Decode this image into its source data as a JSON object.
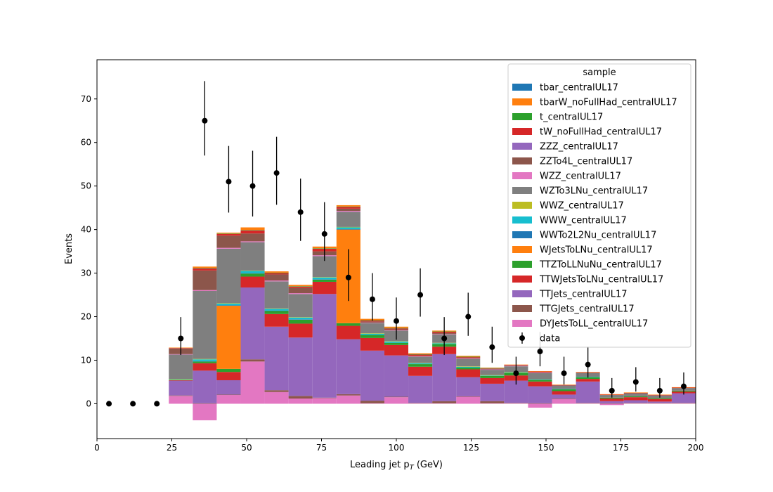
{
  "chart_data": {
    "type": "bar",
    "xlabel": "Leading jet  p",
    "xlabel_sub": "T",
    "xlabel_unit": " (GeV)",
    "ylabel": "Events",
    "xlim": [
      0,
      200
    ],
    "ylim": [
      -8,
      79
    ],
    "xticks": [
      "0",
      "25",
      "50",
      "75",
      "100",
      "125",
      "150",
      "175",
      "200"
    ],
    "xtick_values": [
      0,
      25,
      50,
      75,
      100,
      125,
      150,
      175,
      200
    ],
    "yticks": [
      "0",
      "10",
      "20",
      "30",
      "40",
      "50",
      "60",
      "70"
    ],
    "ytick_values": [
      0,
      10,
      20,
      30,
      40,
      50,
      60,
      70
    ],
    "legend_title": "sample",
    "legend_position": "top-right",
    "grid": false,
    "bin_edges": [
      24,
      32,
      40,
      48,
      56,
      64,
      72,
      80,
      88,
      96,
      104,
      112,
      120,
      128,
      136,
      144,
      152,
      160,
      168,
      176,
      184,
      192,
      200
    ],
    "series": [
      {
        "name": "DYJetsToLL_centralUL17",
        "color": "#e377c2",
        "values": [
          1.8,
          -3.8,
          2.0,
          9.7,
          2.7,
          1.2,
          1.3,
          1.9,
          0.1,
          1.5,
          0.1,
          0.1,
          1.6,
          0.1,
          0.1,
          -0.9,
          1.1,
          0.1,
          -0.3,
          0.1,
          0.1,
          0.1
        ]
      },
      {
        "name": "TTGJets_centralUL17",
        "color": "#8c564b",
        "values": [
          0.1,
          0.1,
          0.1,
          0.5,
          0.4,
          0.6,
          0.1,
          0.3,
          0.6,
          0.1,
          0.1,
          0.5,
          0.1,
          0.5,
          0.1,
          0.1,
          0.1,
          0.1,
          0.1,
          0.1,
          0.1,
          0.1
        ]
      },
      {
        "name": "TTJets_centralUL17",
        "color": "#9467bd",
        "values": [
          3.4,
          7.5,
          3.3,
          16.5,
          14.6,
          13.4,
          23.8,
          12.6,
          11.5,
          9.5,
          6.2,
          10.8,
          4.4,
          4.0,
          5.1,
          3.9,
          0.9,
          4.9,
          0.5,
          0.6,
          0.3,
          2.2
        ]
      },
      {
        "name": "TTWJetsToLNu_centralUL17",
        "color": "#d62728",
        "values": [
          0.1,
          1.7,
          1.9,
          2.5,
          2.9,
          3.2,
          2.8,
          3.1,
          2.9,
          2.4,
          2.1,
          1.7,
          1.8,
          1.3,
          1.2,
          1.1,
          0.8,
          0.6,
          0.6,
          0.7,
          0.6,
          0.4
        ]
      },
      {
        "name": "TTZToLLNuNu_centralUL17",
        "color": "#2ca02c",
        "values": [
          0.1,
          0.4,
          0.7,
          0.7,
          0.7,
          0.9,
          0.5,
          0.6,
          0.7,
          0.5,
          0.6,
          0.6,
          0.4,
          0.5,
          0.6,
          0.4,
          0.4,
          0.4,
          0.2,
          0.2,
          0.2,
          0.2
        ]
      },
      {
        "name": "WJetsToLNu_centralUL17",
        "color": "#ff7f0e",
        "values": [
          0.0,
          0.0,
          14.5,
          0.0,
          0.0,
          0.0,
          0.0,
          21.5,
          0.0,
          0.0,
          0.0,
          0.0,
          0.0,
          0.0,
          0.0,
          0.0,
          0.0,
          0.0,
          0.0,
          0.0,
          0.0,
          0.0
        ]
      },
      {
        "name": "WWTo2L2Nu_centralUL17",
        "color": "#1f77b4",
        "values": [
          0.0,
          0.1,
          0.1,
          0.1,
          0.1,
          0.1,
          0.1,
          0.1,
          0.0,
          0.0,
          0.0,
          0.0,
          0.0,
          0.0,
          0.0,
          0.0,
          0.0,
          0.0,
          0.0,
          0.0,
          0.0,
          0.0
        ]
      },
      {
        "name": "WWW_centralUL17",
        "color": "#17becf",
        "values": [
          0.1,
          0.4,
          0.4,
          0.5,
          0.4,
          0.4,
          0.4,
          0.4,
          0.3,
          0.3,
          0.2,
          0.2,
          0.2,
          0.1,
          0.1,
          0.1,
          0.1,
          0.1,
          0.0,
          0.0,
          0.0,
          0.0
        ]
      },
      {
        "name": "WWZ_centralUL17",
        "color": "#bcbd22",
        "values": [
          0.1,
          0.1,
          0.1,
          0.1,
          0.1,
          0.1,
          0.1,
          0.1,
          0.1,
          0.1,
          0.1,
          0.1,
          0.1,
          0.1,
          0.1,
          0.0,
          0.0,
          0.0,
          0.0,
          0.0,
          0.0,
          0.0
        ]
      },
      {
        "name": "WZTo3LNu_centralUL17",
        "color": "#7f7f7f",
        "values": [
          5.6,
          15.6,
          12.5,
          6.5,
          6.2,
          5.3,
          4.8,
          3.5,
          2.3,
          2.4,
          1.4,
          1.9,
          1.7,
          1.2,
          1.3,
          1.5,
          0.8,
          0.9,
          0.6,
          0.7,
          0.6,
          0.6
        ]
      },
      {
        "name": "WZZ_centralUL17",
        "color": "#e377c2",
        "values": [
          0.1,
          0.2,
          0.2,
          0.2,
          0.2,
          0.2,
          0.2,
          0.2,
          0.1,
          0.1,
          0.1,
          0.1,
          0.1,
          0.1,
          0.1,
          0.1,
          0.0,
          0.0,
          0.0,
          0.0,
          0.0,
          0.0
        ]
      },
      {
        "name": "ZZTo4L_centralUL17",
        "color": "#8c564b",
        "values": [
          1.3,
          4.5,
          2.8,
          1.8,
          1.4,
          1.2,
          0.9,
          0.5,
          0.3,
          0.2,
          0.1,
          0.2,
          0.1,
          0.1,
          0.1,
          0.0,
          0.0,
          0.0,
          0.0,
          0.0,
          0.0,
          0.0
        ]
      },
      {
        "name": "ZZZ_centralUL17",
        "color": "#9467bd",
        "values": [
          0.0,
          0.0,
          0.0,
          0.0,
          0.0,
          0.0,
          0.0,
          0.0,
          0.0,
          0.0,
          0.0,
          0.0,
          0.0,
          0.0,
          0.0,
          0.0,
          0.0,
          0.0,
          0.0,
          0.0,
          0.0,
          0.0
        ]
      },
      {
        "name": "tW_noFullHad_centralUL17",
        "color": "#d62728",
        "values": [
          0.1,
          0.5,
          0.4,
          0.7,
          0.3,
          0.3,
          0.6,
          0.4,
          0.2,
          0.2,
          0.3,
          0.3,
          0.2,
          0.1,
          0.1,
          0.2,
          0.1,
          0.1,
          0.1,
          0.1,
          0.1,
          0.1
        ]
      },
      {
        "name": "t_centralUL17",
        "color": "#2ca02c",
        "values": [
          0.0,
          0.1,
          0.1,
          0.1,
          0.1,
          0.1,
          0.1,
          0.1,
          0.1,
          0.1,
          0.1,
          0.1,
          0.1,
          0.1,
          0.0,
          0.0,
          0.0,
          0.0,
          0.0,
          0.0,
          0.0,
          0.0
        ]
      },
      {
        "name": "tbarW_noFullHad_centralUL17",
        "color": "#ff7f0e",
        "values": [
          0.1,
          0.3,
          0.2,
          0.6,
          0.3,
          0.3,
          0.4,
          0.3,
          0.3,
          0.3,
          0.2,
          0.2,
          0.2,
          0.1,
          0.1,
          0.1,
          0.1,
          0.1,
          0.1,
          0.1,
          0.1,
          0.1
        ]
      },
      {
        "name": "tbar_centralUL17",
        "color": "#1f77b4",
        "values": [
          0.0,
          0.0,
          0.0,
          0.0,
          0.0,
          0.0,
          0.0,
          0.0,
          0.0,
          0.0,
          0.0,
          0.0,
          0.0,
          0.0,
          0.0,
          0.0,
          0.0,
          0.0,
          0.0,
          0.0,
          0.0,
          0.0
        ]
      }
    ],
    "data": {
      "name": "data",
      "x": [
        4,
        12,
        20,
        28,
        36,
        44,
        52,
        60,
        68,
        76,
        84,
        92,
        100,
        108,
        116,
        124,
        132,
        140,
        148,
        156,
        164,
        172,
        180,
        188,
        196
      ],
      "y": [
        0,
        0,
        0,
        15,
        65,
        51,
        50,
        53,
        44,
        39,
        29,
        24,
        19,
        25,
        15,
        20,
        13,
        7,
        12,
        7,
        9,
        3,
        5,
        3,
        4
      ],
      "err_low": [
        0,
        0,
        0,
        3.8,
        8.0,
        7.1,
        7.0,
        7.3,
        6.6,
        6.2,
        5.4,
        4.9,
        4.3,
        5.0,
        3.8,
        4.4,
        3.6,
        2.6,
        3.4,
        2.6,
        3.0,
        1.6,
        2.2,
        1.6,
        1.9
      ],
      "err_high": [
        0,
        0,
        0,
        4.9,
        9.1,
        8.2,
        8.1,
        8.3,
        7.7,
        7.3,
        6.5,
        6.0,
        5.4,
        6.1,
        4.9,
        5.5,
        4.7,
        3.8,
        4.5,
        3.8,
        4.1,
        2.9,
        3.4,
        2.9,
        3.2
      ]
    },
    "legend_order": [
      "tbar_centralUL17",
      "tbarW_noFullHad_centralUL17",
      "t_centralUL17",
      "tW_noFullHad_centralUL17",
      "ZZZ_centralUL17",
      "ZZTo4L_centralUL17",
      "WZZ_centralUL17",
      "WZTo3LNu_centralUL17",
      "WWZ_centralUL17",
      "WWW_centralUL17",
      "WWTo2L2Nu_centralUL17",
      "WJetsToLNu_centralUL17",
      "TTZToLLNuNu_centralUL17",
      "TTWJetsToLNu_centralUL17",
      "TTJets_centralUL17",
      "TTGJets_centralUL17",
      "DYJetsToLL_centralUL17",
      "data"
    ]
  }
}
